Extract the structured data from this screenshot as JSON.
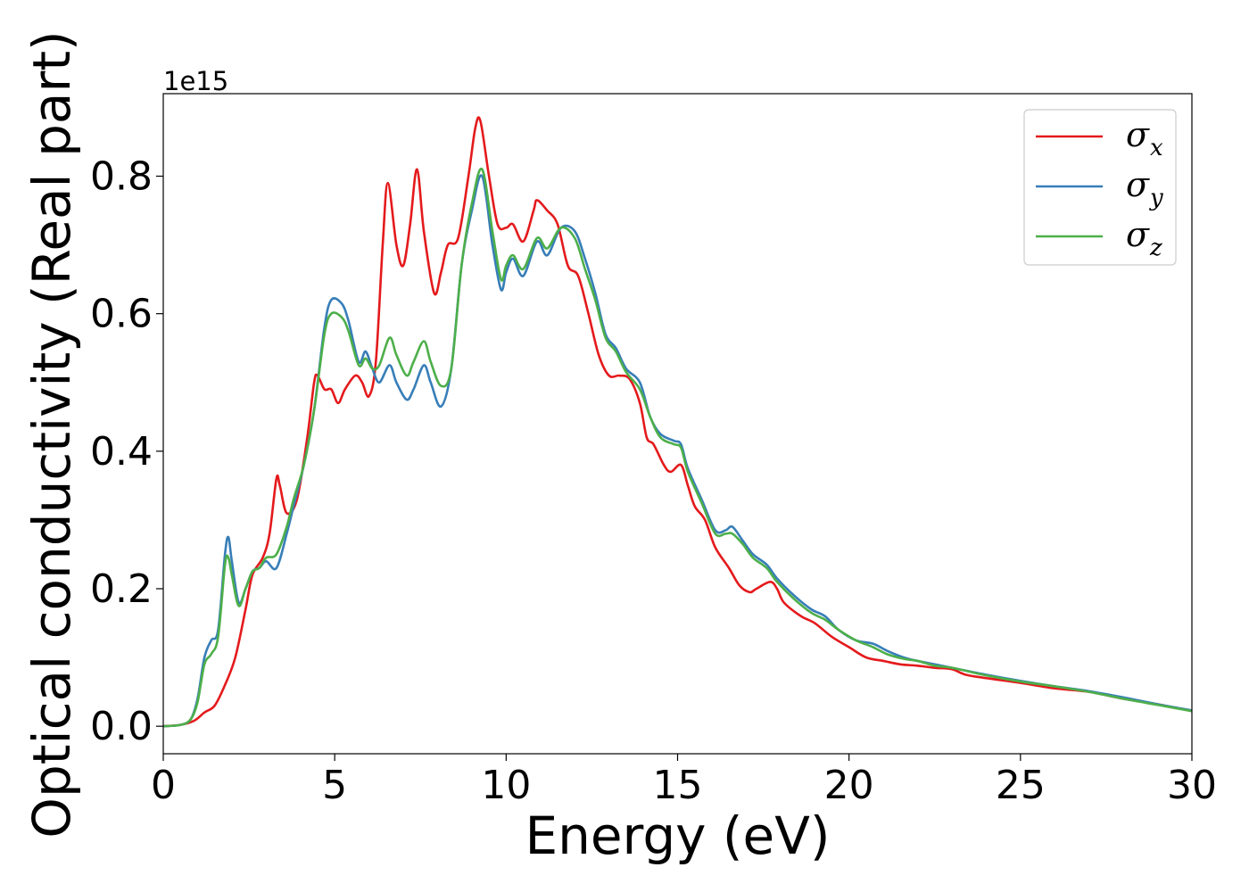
{
  "chart_data": {
    "type": "line",
    "title": "",
    "xlabel": "Energy (eV)",
    "ylabel": "Optical conductivity (Real part)",
    "y_offset_text": "1e15",
    "xlim": [
      0,
      30
    ],
    "ylim": [
      -0.04,
      0.92
    ],
    "xticks": [
      0,
      5,
      10,
      15,
      20,
      25,
      30
    ],
    "xtick_labels": [
      "0",
      "5",
      "10",
      "15",
      "20",
      "25",
      "30"
    ],
    "yticks": [
      0.0,
      0.2,
      0.4,
      0.6,
      0.8
    ],
    "ytick_labels": [
      "0.0",
      "0.2",
      "0.4",
      "0.6",
      "0.8"
    ],
    "grid": false,
    "legend_position": "top-right",
    "series": [
      {
        "name": "σx",
        "symbol": "σ",
        "subscript": "x",
        "color": "#e41a1c",
        "points": [
          [
            0,
            0
          ],
          [
            0.5,
            0.002
          ],
          [
            0.9,
            0.008
          ],
          [
            1.2,
            0.02
          ],
          [
            1.5,
            0.03
          ],
          [
            1.8,
            0.06
          ],
          [
            2.1,
            0.1
          ],
          [
            2.4,
            0.17
          ],
          [
            2.6,
            0.22
          ],
          [
            2.9,
            0.245
          ],
          [
            3.1,
            0.28
          ],
          [
            3.3,
            0.36
          ],
          [
            3.4,
            0.35
          ],
          [
            3.6,
            0.31
          ],
          [
            3.9,
            0.33
          ],
          [
            4.2,
            0.42
          ],
          [
            4.4,
            0.5
          ],
          [
            4.5,
            0.51
          ],
          [
            4.7,
            0.49
          ],
          [
            4.9,
            0.49
          ],
          [
            5.1,
            0.47
          ],
          [
            5.3,
            0.49
          ],
          [
            5.6,
            0.51
          ],
          [
            5.8,
            0.5
          ],
          [
            6.0,
            0.48
          ],
          [
            6.2,
            0.53
          ],
          [
            6.4,
            0.7
          ],
          [
            6.55,
            0.79
          ],
          [
            6.8,
            0.7
          ],
          [
            7.0,
            0.67
          ],
          [
            7.2,
            0.73
          ],
          [
            7.4,
            0.81
          ],
          [
            7.6,
            0.72
          ],
          [
            7.9,
            0.63
          ],
          [
            8.1,
            0.66
          ],
          [
            8.3,
            0.7
          ],
          [
            8.6,
            0.71
          ],
          [
            8.9,
            0.8
          ],
          [
            9.1,
            0.87
          ],
          [
            9.25,
            0.88
          ],
          [
            9.5,
            0.8
          ],
          [
            9.75,
            0.73
          ],
          [
            10.0,
            0.725
          ],
          [
            10.2,
            0.73
          ],
          [
            10.5,
            0.705
          ],
          [
            10.8,
            0.75
          ],
          [
            10.9,
            0.765
          ],
          [
            11.2,
            0.75
          ],
          [
            11.5,
            0.73
          ],
          [
            11.8,
            0.67
          ],
          [
            12.1,
            0.655
          ],
          [
            12.4,
            0.6
          ],
          [
            12.7,
            0.54
          ],
          [
            13.0,
            0.51
          ],
          [
            13.3,
            0.51
          ],
          [
            13.6,
            0.505
          ],
          [
            13.9,
            0.47
          ],
          [
            14.1,
            0.42
          ],
          [
            14.3,
            0.41
          ],
          [
            14.6,
            0.38
          ],
          [
            14.8,
            0.37
          ],
          [
            15.1,
            0.38
          ],
          [
            15.3,
            0.35
          ],
          [
            15.5,
            0.32
          ],
          [
            15.8,
            0.3
          ],
          [
            16.1,
            0.26
          ],
          [
            16.5,
            0.23
          ],
          [
            16.8,
            0.205
          ],
          [
            17.1,
            0.195
          ],
          [
            17.3,
            0.2
          ],
          [
            17.7,
            0.21
          ],
          [
            17.9,
            0.2
          ],
          [
            18.1,
            0.18
          ],
          [
            18.6,
            0.16
          ],
          [
            19.0,
            0.15
          ],
          [
            19.5,
            0.13
          ],
          [
            20.0,
            0.115
          ],
          [
            20.5,
            0.1
          ],
          [
            21.0,
            0.095
          ],
          [
            21.5,
            0.09
          ],
          [
            22.0,
            0.088
          ],
          [
            22.5,
            0.085
          ],
          [
            23.0,
            0.083
          ],
          [
            23.4,
            0.075
          ],
          [
            24.0,
            0.07
          ],
          [
            25.0,
            0.063
          ],
          [
            26.0,
            0.055
          ],
          [
            27.0,
            0.05
          ],
          [
            28.0,
            0.04
          ],
          [
            29.0,
            0.032
          ],
          [
            30.0,
            0.022
          ]
        ]
      },
      {
        "name": "σy",
        "symbol": "σ",
        "subscript": "y",
        "color": "#377eb8",
        "points": [
          [
            0,
            0
          ],
          [
            0.5,
            0.002
          ],
          [
            0.8,
            0.01
          ],
          [
            1.0,
            0.04
          ],
          [
            1.2,
            0.1
          ],
          [
            1.4,
            0.125
          ],
          [
            1.6,
            0.14
          ],
          [
            1.8,
            0.25
          ],
          [
            1.9,
            0.275
          ],
          [
            2.0,
            0.24
          ],
          [
            2.2,
            0.18
          ],
          [
            2.4,
            0.2
          ],
          [
            2.6,
            0.225
          ],
          [
            2.8,
            0.23
          ],
          [
            3.0,
            0.24
          ],
          [
            3.3,
            0.23
          ],
          [
            3.6,
            0.28
          ],
          [
            3.8,
            0.32
          ],
          [
            4.1,
            0.38
          ],
          [
            4.4,
            0.46
          ],
          [
            4.7,
            0.58
          ],
          [
            4.9,
            0.62
          ],
          [
            5.2,
            0.615
          ],
          [
            5.4,
            0.59
          ],
          [
            5.7,
            0.53
          ],
          [
            5.9,
            0.545
          ],
          [
            6.1,
            0.52
          ],
          [
            6.3,
            0.5
          ],
          [
            6.6,
            0.525
          ],
          [
            6.8,
            0.5
          ],
          [
            7.1,
            0.475
          ],
          [
            7.3,
            0.49
          ],
          [
            7.6,
            0.525
          ],
          [
            7.8,
            0.5
          ],
          [
            8.1,
            0.465
          ],
          [
            8.4,
            0.52
          ],
          [
            8.7,
            0.67
          ],
          [
            9.0,
            0.75
          ],
          [
            9.3,
            0.8
          ],
          [
            9.6,
            0.7
          ],
          [
            9.85,
            0.635
          ],
          [
            10.0,
            0.66
          ],
          [
            10.2,
            0.68
          ],
          [
            10.5,
            0.655
          ],
          [
            10.9,
            0.705
          ],
          [
            11.2,
            0.685
          ],
          [
            11.6,
            0.725
          ],
          [
            12.0,
            0.72
          ],
          [
            12.3,
            0.68
          ],
          [
            12.6,
            0.63
          ],
          [
            12.9,
            0.57
          ],
          [
            13.2,
            0.55
          ],
          [
            13.5,
            0.52
          ],
          [
            13.9,
            0.5
          ],
          [
            14.2,
            0.45
          ],
          [
            14.5,
            0.425
          ],
          [
            14.9,
            0.415
          ],
          [
            15.1,
            0.41
          ],
          [
            15.3,
            0.375
          ],
          [
            15.7,
            0.33
          ],
          [
            16.1,
            0.285
          ],
          [
            16.4,
            0.285
          ],
          [
            16.6,
            0.29
          ],
          [
            16.9,
            0.27
          ],
          [
            17.2,
            0.25
          ],
          [
            17.6,
            0.235
          ],
          [
            17.9,
            0.215
          ],
          [
            18.4,
            0.19
          ],
          [
            18.9,
            0.17
          ],
          [
            19.3,
            0.16
          ],
          [
            19.7,
            0.14
          ],
          [
            20.2,
            0.125
          ],
          [
            20.7,
            0.12
          ],
          [
            21.1,
            0.11
          ],
          [
            21.6,
            0.1
          ],
          [
            22.0,
            0.095
          ],
          [
            22.5,
            0.09
          ],
          [
            23.0,
            0.085
          ],
          [
            24.0,
            0.075
          ],
          [
            25.0,
            0.066
          ],
          [
            26.0,
            0.058
          ],
          [
            27.0,
            0.051
          ],
          [
            28.0,
            0.042
          ],
          [
            29.0,
            0.032
          ],
          [
            30.0,
            0.023
          ]
        ]
      },
      {
        "name": "σz",
        "symbol": "σ",
        "subscript": "z",
        "color": "#4daf4a",
        "points": [
          [
            0,
            0
          ],
          [
            0.5,
            0.002
          ],
          [
            0.8,
            0.01
          ],
          [
            1.0,
            0.035
          ],
          [
            1.2,
            0.09
          ],
          [
            1.4,
            0.105
          ],
          [
            1.6,
            0.13
          ],
          [
            1.8,
            0.235
          ],
          [
            1.9,
            0.245
          ],
          [
            2.0,
            0.22
          ],
          [
            2.2,
            0.175
          ],
          [
            2.4,
            0.2
          ],
          [
            2.6,
            0.225
          ],
          [
            2.8,
            0.23
          ],
          [
            3.0,
            0.245
          ],
          [
            3.3,
            0.25
          ],
          [
            3.6,
            0.29
          ],
          [
            3.8,
            0.33
          ],
          [
            4.1,
            0.38
          ],
          [
            4.4,
            0.46
          ],
          [
            4.7,
            0.57
          ],
          [
            4.9,
            0.6
          ],
          [
            5.2,
            0.595
          ],
          [
            5.4,
            0.575
          ],
          [
            5.7,
            0.525
          ],
          [
            5.9,
            0.535
          ],
          [
            6.1,
            0.52
          ],
          [
            6.3,
            0.525
          ],
          [
            6.6,
            0.565
          ],
          [
            6.8,
            0.54
          ],
          [
            7.1,
            0.51
          ],
          [
            7.3,
            0.53
          ],
          [
            7.6,
            0.56
          ],
          [
            7.8,
            0.53
          ],
          [
            8.1,
            0.495
          ],
          [
            8.4,
            0.52
          ],
          [
            8.7,
            0.67
          ],
          [
            9.0,
            0.76
          ],
          [
            9.3,
            0.81
          ],
          [
            9.6,
            0.72
          ],
          [
            9.85,
            0.65
          ],
          [
            10.0,
            0.67
          ],
          [
            10.2,
            0.685
          ],
          [
            10.5,
            0.665
          ],
          [
            10.9,
            0.71
          ],
          [
            11.2,
            0.695
          ],
          [
            11.6,
            0.725
          ],
          [
            12.0,
            0.71
          ],
          [
            12.3,
            0.665
          ],
          [
            12.6,
            0.62
          ],
          [
            12.9,
            0.565
          ],
          [
            13.2,
            0.545
          ],
          [
            13.5,
            0.515
          ],
          [
            13.9,
            0.49
          ],
          [
            14.2,
            0.45
          ],
          [
            14.5,
            0.42
          ],
          [
            14.9,
            0.41
          ],
          [
            15.1,
            0.405
          ],
          [
            15.3,
            0.37
          ],
          [
            15.7,
            0.325
          ],
          [
            16.1,
            0.28
          ],
          [
            16.4,
            0.28
          ],
          [
            16.6,
            0.28
          ],
          [
            16.9,
            0.265
          ],
          [
            17.2,
            0.245
          ],
          [
            17.6,
            0.23
          ],
          [
            17.9,
            0.21
          ],
          [
            18.4,
            0.185
          ],
          [
            18.9,
            0.165
          ],
          [
            19.3,
            0.155
          ],
          [
            19.7,
            0.14
          ],
          [
            20.2,
            0.125
          ],
          [
            20.7,
            0.115
          ],
          [
            21.1,
            0.105
          ],
          [
            21.6,
            0.098
          ],
          [
            22.0,
            0.095
          ],
          [
            22.5,
            0.088
          ],
          [
            23.0,
            0.085
          ],
          [
            24.0,
            0.074
          ],
          [
            25.0,
            0.065
          ],
          [
            26.0,
            0.058
          ],
          [
            27.0,
            0.05
          ],
          [
            28.0,
            0.04
          ],
          [
            29.0,
            0.031
          ],
          [
            30.0,
            0.022
          ]
        ]
      }
    ]
  }
}
